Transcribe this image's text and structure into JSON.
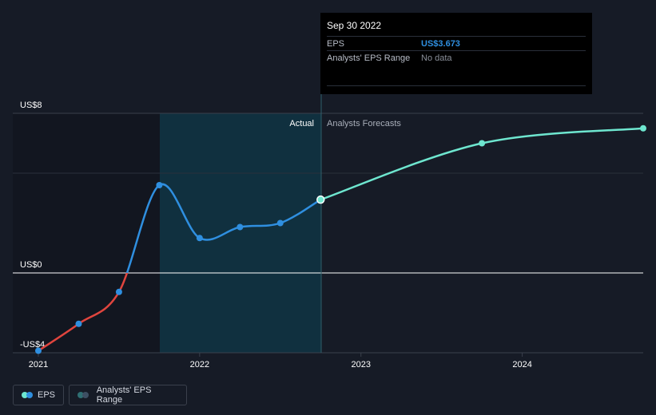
{
  "tooltip": {
    "date": "Sep 30 2022",
    "rows": [
      {
        "label": "EPS",
        "value": "US$3.673"
      },
      {
        "label": "Analysts' EPS Range",
        "value": "No data"
      }
    ]
  },
  "legend": {
    "eps": "EPS",
    "range": "Analysts' EPS Range"
  },
  "colors": {
    "eps_positive": "#2f8fe0",
    "eps_negative": "#e0453e",
    "forecast": "#6ee6cf",
    "range": "#2f6f73"
  },
  "chart_data": {
    "type": "line",
    "title": "",
    "xlabel": "",
    "ylabel": "",
    "y_tick_labels": [
      "US$8",
      "US$0",
      "-US$4"
    ],
    "y_ticks": [
      8,
      0,
      -4
    ],
    "x_tick_labels": [
      "2021",
      "2022",
      "2023",
      "2024"
    ],
    "x_ticks": [
      2021,
      2022,
      2023,
      2024
    ],
    "ylim": [
      -4,
      8
    ],
    "xlim": [
      2021,
      2024.75
    ],
    "region_labels": {
      "actual": "Actual",
      "forecast": "Analysts Forecasts"
    },
    "series": [
      {
        "name": "EPS",
        "x": [
          2021.0,
          2021.25,
          2021.5,
          2021.75,
          2022.0,
          2022.25,
          2022.5,
          2022.75
        ],
        "y": [
          -3.9,
          -2.55,
          -0.95,
          4.4,
          1.75,
          2.3,
          2.5,
          3.673
        ]
      },
      {
        "name": "Analysts Forecasts",
        "x": [
          2022.75,
          2023.75,
          2024.75
        ],
        "y": [
          3.673,
          6.5,
          7.25
        ]
      }
    ],
    "grid": true,
    "legend_position": "bottom-left"
  }
}
